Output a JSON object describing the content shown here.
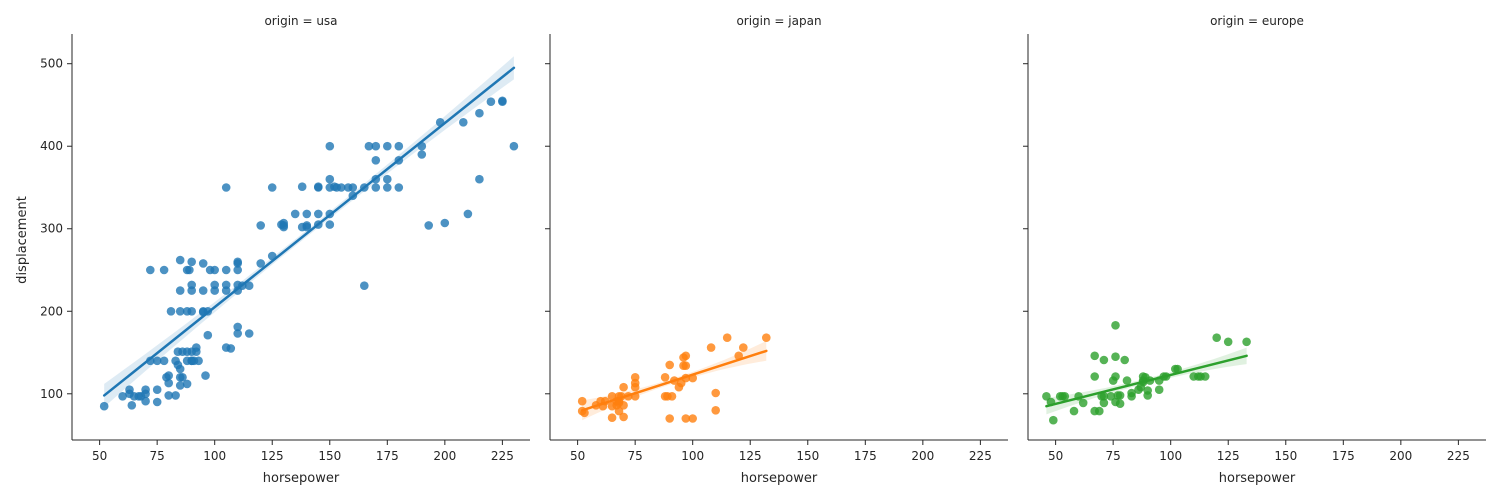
{
  "chart_data": {
    "type": "scatter",
    "xlabel": "horsepower",
    "ylabel": "displacement",
    "xlim": [
      38,
      237
    ],
    "ylim": [
      44,
      536
    ],
    "x_ticks": [
      50,
      75,
      100,
      125,
      150,
      175,
      200,
      225
    ],
    "y_ticks": [
      100,
      200,
      300,
      400,
      500
    ],
    "grid": false,
    "legend": "none",
    "facets": [
      {
        "title": "origin = usa",
        "color": "#1f77b4",
        "fit": {
          "x": [
            52,
            230
          ],
          "y": [
            98,
            495
          ]
        },
        "ci_halfwidth": {
          "ends": 14,
          "middle": 4
        },
        "points": [
          [
            52,
            85
          ],
          [
            60,
            97
          ],
          [
            63,
            105
          ],
          [
            63,
            100
          ],
          [
            65,
            97
          ],
          [
            67,
            97
          ],
          [
            68,
            97
          ],
          [
            70,
            100
          ],
          [
            70,
            105
          ],
          [
            70,
            91
          ],
          [
            64,
            86
          ],
          [
            72,
            250
          ],
          [
            72,
            140
          ],
          [
            75,
            140
          ],
          [
            75,
            90
          ],
          [
            75,
            105
          ],
          [
            78,
            140
          ],
          [
            78,
            250
          ],
          [
            79,
            120
          ],
          [
            80,
            122
          ],
          [
            80,
            98
          ],
          [
            80,
            113
          ],
          [
            81,
            200
          ],
          [
            83,
            140
          ],
          [
            83,
            98
          ],
          [
            84,
            135
          ],
          [
            84,
            151
          ],
          [
            85,
            262
          ],
          [
            85,
            225
          ],
          [
            85,
            200
          ],
          [
            85,
            130
          ],
          [
            85,
            120
          ],
          [
            85,
            110
          ],
          [
            86,
            120
          ],
          [
            86,
            151
          ],
          [
            88,
            140
          ],
          [
            88,
            200
          ],
          [
            88,
            250
          ],
          [
            88,
            112
          ],
          [
            88,
            151
          ],
          [
            89,
            250
          ],
          [
            90,
            260
          ],
          [
            90,
            232
          ],
          [
            90,
            225
          ],
          [
            90,
            140
          ],
          [
            90,
            200
          ],
          [
            90,
            151
          ],
          [
            90,
            140
          ],
          [
            91,
            140
          ],
          [
            92,
            151
          ],
          [
            92,
            156
          ],
          [
            93,
            140
          ],
          [
            95,
            258
          ],
          [
            95,
            225
          ],
          [
            95,
            200
          ],
          [
            95,
            199
          ],
          [
            96,
            122
          ],
          [
            97,
            200
          ],
          [
            97,
            171
          ],
          [
            98,
            250
          ],
          [
            100,
            232
          ],
          [
            100,
            225
          ],
          [
            100,
            250
          ],
          [
            105,
            350
          ],
          [
            105,
            250
          ],
          [
            105,
            232
          ],
          [
            105,
            225
          ],
          [
            105,
            156
          ],
          [
            107,
            155
          ],
          [
            110,
            260
          ],
          [
            110,
            258
          ],
          [
            110,
            250
          ],
          [
            110,
            232
          ],
          [
            110,
            225
          ],
          [
            110,
            181
          ],
          [
            110,
            173
          ],
          [
            112,
            231
          ],
          [
            115,
            231
          ],
          [
            115,
            173
          ],
          [
            120,
            258
          ],
          [
            120,
            304
          ],
          [
            125,
            350
          ],
          [
            125,
            267
          ],
          [
            129,
            305
          ],
          [
            130,
            302
          ],
          [
            130,
            307
          ],
          [
            130,
            304
          ],
          [
            135,
            318
          ],
          [
            138,
            351
          ],
          [
            138,
            302
          ],
          [
            140,
            318
          ],
          [
            140,
            304
          ],
          [
            140,
            302
          ],
          [
            145,
            350
          ],
          [
            145,
            351
          ],
          [
            145,
            318
          ],
          [
            145,
            305
          ],
          [
            150,
            400
          ],
          [
            150,
            350
          ],
          [
            150,
            360
          ],
          [
            150,
            318
          ],
          [
            150,
            305
          ],
          [
            152,
            351
          ],
          [
            153,
            350
          ],
          [
            155,
            350
          ],
          [
            158,
            350
          ],
          [
            160,
            350
          ],
          [
            160,
            340
          ],
          [
            165,
            350
          ],
          [
            165,
            231
          ],
          [
            167,
            400
          ],
          [
            170,
            400
          ],
          [
            170,
            383
          ],
          [
            170,
            350
          ],
          [
            170,
            360
          ],
          [
            175,
            400
          ],
          [
            175,
            360
          ],
          [
            175,
            350
          ],
          [
            180,
            400
          ],
          [
            180,
            350
          ],
          [
            180,
            383
          ],
          [
            190,
            400
          ],
          [
            190,
            390
          ],
          [
            193,
            304
          ],
          [
            198,
            429
          ],
          [
            200,
            307
          ],
          [
            208,
            429
          ],
          [
            210,
            318
          ],
          [
            215,
            440
          ],
          [
            215,
            360
          ],
          [
            220,
            454
          ],
          [
            225,
            455
          ],
          [
            225,
            454
          ],
          [
            230,
            400
          ]
        ]
      },
      {
        "title": "origin = japan",
        "color": "#ff7f0e",
        "fit": {
          "x": [
            52,
            132
          ],
          "y": [
            80,
            152
          ]
        },
        "ci_halfwidth": {
          "ends": 12,
          "middle": 3
        },
        "points": [
          [
            52,
            79
          ],
          [
            52,
            91
          ],
          [
            53,
            77
          ],
          [
            58,
            86
          ],
          [
            60,
            91
          ],
          [
            61,
            85
          ],
          [
            62,
            91
          ],
          [
            65,
            71
          ],
          [
            65,
            85
          ],
          [
            65,
            97
          ],
          [
            67,
            91
          ],
          [
            67,
            86
          ],
          [
            68,
            97
          ],
          [
            68,
            91
          ],
          [
            68,
            89
          ],
          [
            68,
            79
          ],
          [
            69,
            97
          ],
          [
            70,
            72
          ],
          [
            70,
            86
          ],
          [
            70,
            108
          ],
          [
            72,
            97
          ],
          [
            75,
            97
          ],
          [
            75,
            113
          ],
          [
            75,
            120
          ],
          [
            75,
            108
          ],
          [
            88,
            120
          ],
          [
            88,
            97
          ],
          [
            89,
            97
          ],
          [
            90,
            70
          ],
          [
            90,
            135
          ],
          [
            91,
            97
          ],
          [
            92,
            116
          ],
          [
            94,
            108
          ],
          [
            95,
            113
          ],
          [
            96,
            134
          ],
          [
            96,
            144
          ],
          [
            97,
            70
          ],
          [
            97,
            119
          ],
          [
            97,
            134
          ],
          [
            97,
            146
          ],
          [
            100,
            119
          ],
          [
            100,
            70
          ],
          [
            108,
            156
          ],
          [
            110,
            80
          ],
          [
            115,
            168
          ],
          [
            120,
            146
          ],
          [
            122,
            156
          ],
          [
            132,
            168
          ],
          [
            110,
            101
          ]
        ]
      },
      {
        "title": "origin = europe",
        "color": "#2ca02c",
        "fit": {
          "x": [
            46,
            133
          ],
          "y": [
            85,
            146
          ]
        },
        "ci_halfwidth": {
          "ends": 10,
          "middle": 3
        },
        "points": [
          [
            46,
            97
          ],
          [
            48,
            90
          ],
          [
            49,
            68
          ],
          [
            52,
            97
          ],
          [
            53,
            97
          ],
          [
            54,
            97
          ],
          [
            58,
            79
          ],
          [
            60,
            97
          ],
          [
            62,
            89
          ],
          [
            67,
            79
          ],
          [
            67,
            146
          ],
          [
            67,
            121
          ],
          [
            69,
            79
          ],
          [
            70,
            97
          ],
          [
            71,
            97
          ],
          [
            71,
            89
          ],
          [
            71,
            141
          ],
          [
            74,
            97
          ],
          [
            75,
            116
          ],
          [
            76,
            183
          ],
          [
            76,
            145
          ],
          [
            76,
            121
          ],
          [
            76,
            90
          ],
          [
            77,
            98
          ],
          [
            78,
            98
          ],
          [
            78,
            88
          ],
          [
            80,
            141
          ],
          [
            81,
            116
          ],
          [
            83,
            97
          ],
          [
            83,
            101
          ],
          [
            86,
            105
          ],
          [
            87,
            108
          ],
          [
            88,
            121
          ],
          [
            88,
            114
          ],
          [
            88,
            116
          ],
          [
            89,
            120
          ],
          [
            90,
            98
          ],
          [
            90,
            104
          ],
          [
            91,
            116
          ],
          [
            95,
            105
          ],
          [
            95,
            116
          ],
          [
            97,
            121
          ],
          [
            98,
            121
          ],
          [
            102,
            130
          ],
          [
            103,
            130
          ],
          [
            110,
            121
          ],
          [
            112,
            121
          ],
          [
            113,
            121
          ],
          [
            115,
            121
          ],
          [
            120,
            168
          ],
          [
            125,
            163
          ],
          [
            133,
            163
          ]
        ]
      }
    ]
  }
}
